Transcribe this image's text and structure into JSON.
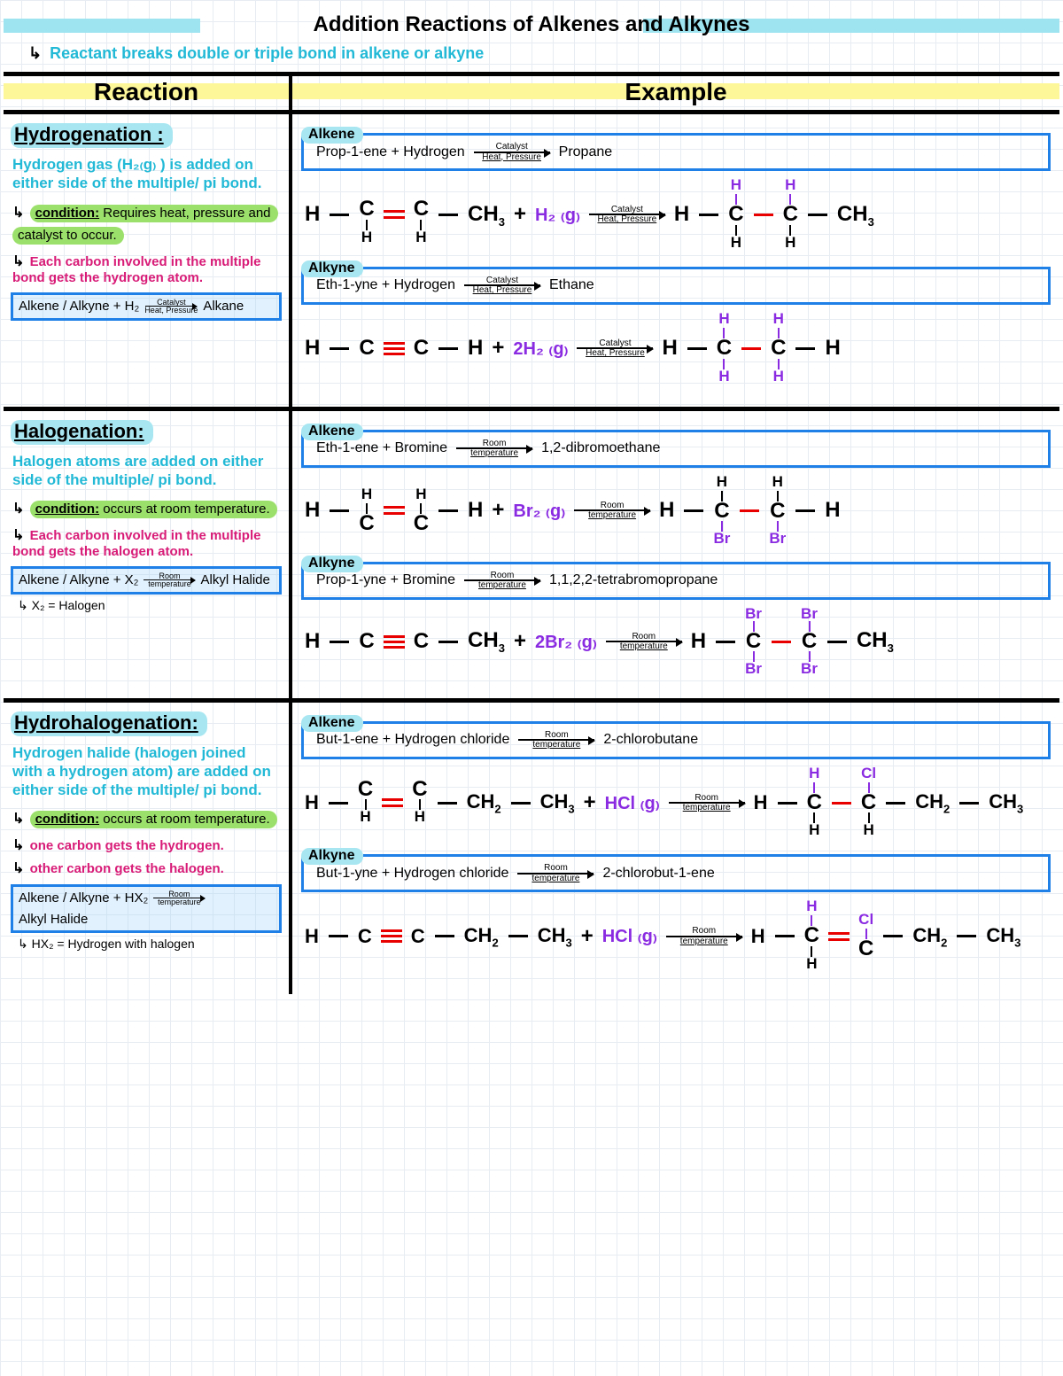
{
  "colors": {
    "cyan_highlight": "#9de4f0",
    "yellow_highlight": "#fef79a",
    "cyan_text": "#22b9d6",
    "green_pill": "#9be06a",
    "blue_box": "#1f80e8",
    "magenta": "#d81b77",
    "purple": "#8a2be2",
    "red_bond": "#e80000"
  },
  "page_title": "Addition  Reactions of Alkenes and Alkynes",
  "intro_bullet": "↳",
  "intro": "Reactant breaks double or triple bond in alkene or alkyne",
  "header_left": "Reaction",
  "header_right": "Example",
  "arrows": {
    "catalyst_top": "Catalyst",
    "catalyst_bot": "Heat, Pressure",
    "room_top": "Room",
    "room_bot": "temperature"
  },
  "sections": {
    "hydrogenation": {
      "title": "Hydrogenation :",
      "desc": "Hydrogen gas (H₂₍g₎ ) is added on either side of the multiple/ pi bond.",
      "condition_label": "condition:",
      "condition": "Requires heat, pressure and catalyst to occur.",
      "note_magenta": "Each carbon involved in the multiple bond gets the hydrogen atom.",
      "eq_lhs": "Alkene / Alkyne + H₂",
      "eq_rhs": "Alkane",
      "alkene_tag": "Alkene",
      "alkene_word_lhs": "Prop-1-ene + Hydrogen",
      "alkene_word_rhs": "Propane",
      "alkene_reagent": "H₂ ₍g₎",
      "alkyne_tag": "Alkyne",
      "alkyne_word_lhs": "Eth-1-yne + Hydrogen",
      "alkyne_word_rhs": "Ethane",
      "alkyne_reagent": "2H₂ ₍g₎"
    },
    "halogenation": {
      "title": "Halogenation:",
      "desc": "Halogen atoms are added on either side of the multiple/ pi bond.",
      "condition_label": "condition:",
      "condition": "occurs at room temperature.",
      "note_magenta": "Each carbon involved in the multiple bond gets the halogen atom.",
      "eq_lhs": "Alkene / Alkyne + X₂",
      "eq_rhs": "Alkyl Halide",
      "footnote": "X₂ = Halogen",
      "alkene_tag": "Alkene",
      "alkene_word_lhs": "Eth-1-ene + Bromine",
      "alkene_word_rhs": "1,2-dibromoethane",
      "alkene_reagent": "Br₂ ₍g₎",
      "alkyne_tag": "Alkyne",
      "alkyne_word_lhs": "Prop-1-yne + Bromine",
      "alkyne_word_rhs": "1,1,2,2-tetrabromopropane",
      "alkyne_reagent": "2Br₂ ₍g₎"
    },
    "hydrohalogenation": {
      "title": "Hydrohalogenation:",
      "desc": "Hydrogen halide (halogen joined with a hydrogen atom) are added on either side of the multiple/ pi bond.",
      "condition_label": "condition:",
      "condition": "occurs at room temperature.",
      "note_magenta1": "one carbon gets the hydrogen.",
      "note_magenta2": "other carbon gets the halogen.",
      "eq_lhs": "Alkene / Alkyne + HX₂",
      "eq_rhs": "Alkyl Halide",
      "footnote": "HX₂ = Hydrogen with halogen",
      "alkene_tag": "Alkene",
      "alkene_word_lhs": "But-1-ene + Hydrogen chloride",
      "alkene_word_rhs": "2-chlorobutane",
      "alkene_reagent": "HCl ₍g₎",
      "alkyne_tag": "Alkyne",
      "alkyne_word_lhs": "But-1-yne + Hydrogen chloride",
      "alkyne_word_rhs": "2-chlorobut-1-ene",
      "alkyne_reagent": "HCl ₍g₎"
    }
  }
}
